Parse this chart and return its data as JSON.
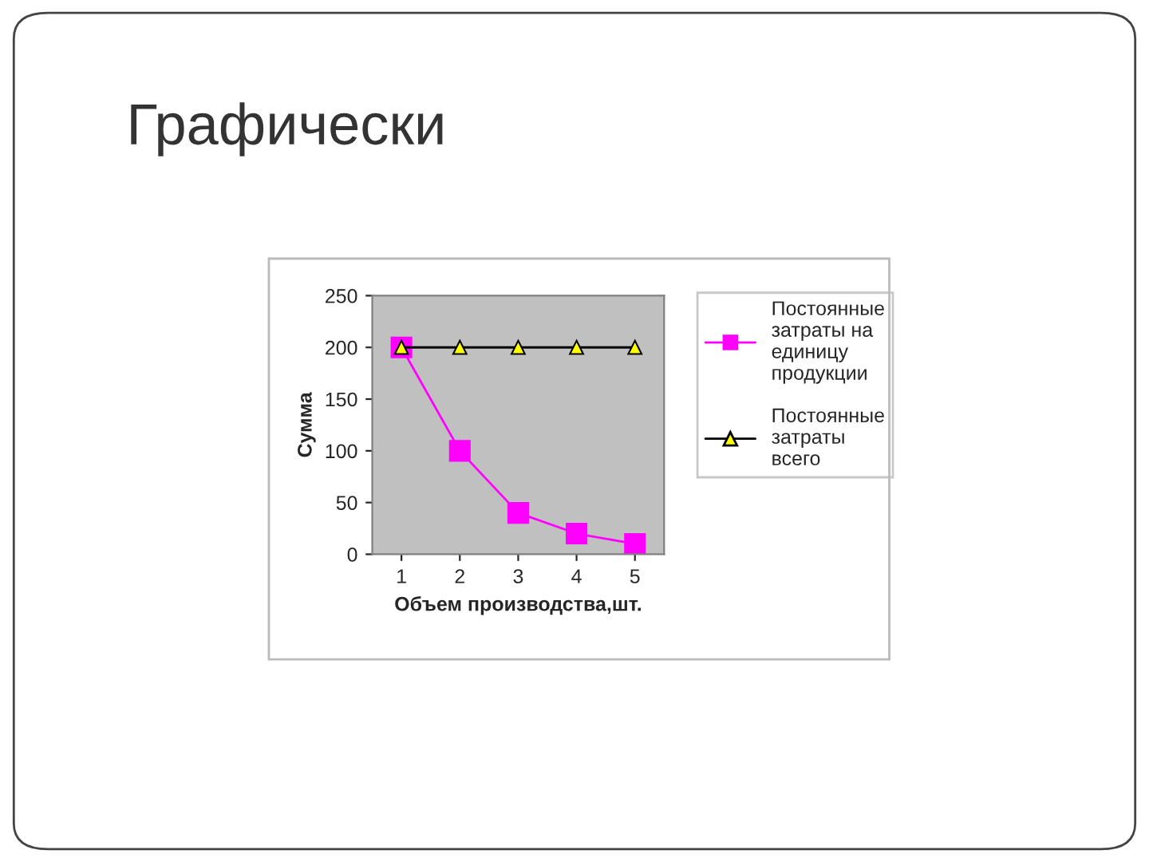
{
  "chart_data": {
    "type": "line",
    "title": "Графически",
    "xlabel": "Объем производства,шт.",
    "ylabel": "Сумма",
    "categories": [
      "1",
      "2",
      "3",
      "4",
      "5"
    ],
    "series": [
      {
        "name": "Постоянные затраты на единицу продукции",
        "color": "#ff00ff",
        "marker": "square",
        "values": [
          200,
          100,
          40,
          20,
          10
        ]
      },
      {
        "name": "Постоянные затраты всего",
        "color": "#000000",
        "marker": "triangle",
        "values": [
          200,
          200,
          200,
          200,
          200
        ]
      }
    ],
    "ylim": [
      0,
      250
    ],
    "yticks": [
      0,
      50,
      100,
      150,
      200,
      250
    ],
    "grid": false,
    "legend": "right"
  }
}
